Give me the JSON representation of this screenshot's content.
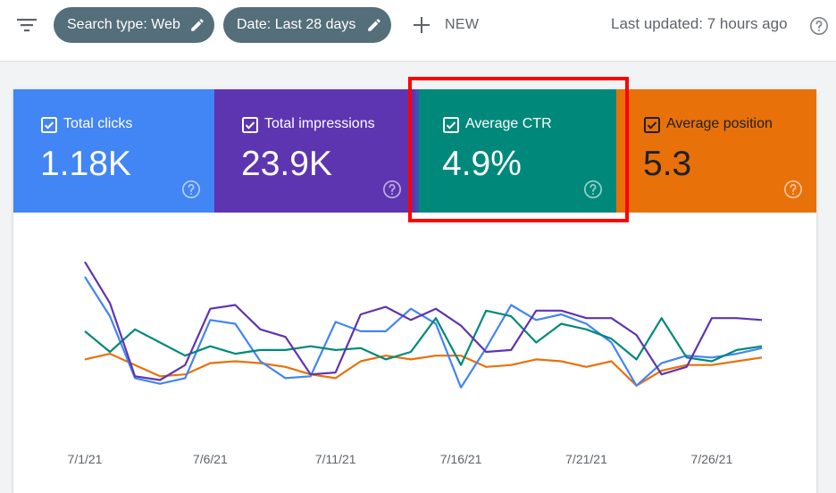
{
  "toolbar": {
    "filter_icon": "filter-list-icon",
    "search_chip": "Search type: Web",
    "date_chip": "Date: Last 28 days",
    "new_label": "NEW",
    "last_updated": "Last updated: 7 hours ago"
  },
  "metrics": [
    {
      "label": "Total clicks",
      "value": "1.18K",
      "checked": true,
      "color": "#4285f4"
    },
    {
      "label": "Total impressions",
      "value": "23.9K",
      "checked": true,
      "color": "#5e35b1"
    },
    {
      "label": "Average CTR",
      "value": "4.9%",
      "checked": true,
      "color": "#00897b"
    },
    {
      "label": "Average position",
      "value": "5.3",
      "checked": true,
      "color": "#e8710a"
    }
  ],
  "highlight_color": "#ff0000",
  "chart_data": {
    "type": "line",
    "x": [
      "7/1/21",
      "7/2/21",
      "7/3/21",
      "7/4/21",
      "7/5/21",
      "7/6/21",
      "7/7/21",
      "7/8/21",
      "7/9/21",
      "7/10/21",
      "7/11/21",
      "7/12/21",
      "7/13/21",
      "7/14/21",
      "7/15/21",
      "7/16/21",
      "7/17/21",
      "7/18/21",
      "7/19/21",
      "7/20/21",
      "7/21/21",
      "7/22/21",
      "7/23/21",
      "7/24/21",
      "7/25/21",
      "7/26/21",
      "7/27/21",
      "7/28/21"
    ],
    "tick_labels": [
      "7/1/21",
      "7/6/21",
      "7/11/21",
      "7/16/21",
      "7/21/21",
      "7/26/21"
    ],
    "ylim": [
      0,
      100
    ],
    "grid": false,
    "series": [
      {
        "metric": "Total clicks",
        "color": "#4285f4",
        "values": [
          80,
          59,
          26,
          23,
          26,
          57,
          55,
          35,
          26,
          27,
          56,
          51,
          51,
          63,
          55,
          21,
          42,
          65,
          57,
          60,
          55,
          45,
          22,
          34,
          38,
          37,
          39,
          42
        ]
      },
      {
        "metric": "Total impressions",
        "color": "#5e35b1",
        "values": [
          88,
          66,
          27,
          25,
          33,
          63,
          65,
          52,
          48,
          28,
          29,
          60,
          64,
          57,
          63,
          54,
          40,
          41,
          62,
          62,
          58,
          58,
          49,
          28,
          32,
          58,
          58,
          57
        ]
      },
      {
        "metric": "Average CTR",
        "color": "#00897b",
        "values": [
          51,
          40,
          52,
          45,
          38,
          43,
          39,
          41,
          41,
          43,
          41,
          42,
          36,
          40,
          58,
          33,
          62,
          59,
          45,
          55,
          52,
          47,
          36,
          58,
          37,
          35,
          41,
          43
        ]
      },
      {
        "metric": "Average position",
        "color": "#e8710a",
        "values": [
          36,
          39,
          33,
          27,
          28,
          34,
          35,
          34,
          32,
          28,
          26,
          35,
          38,
          36,
          38,
          38,
          32,
          33,
          36,
          35,
          32,
          35,
          22,
          30,
          33,
          33,
          35,
          37
        ]
      }
    ]
  }
}
